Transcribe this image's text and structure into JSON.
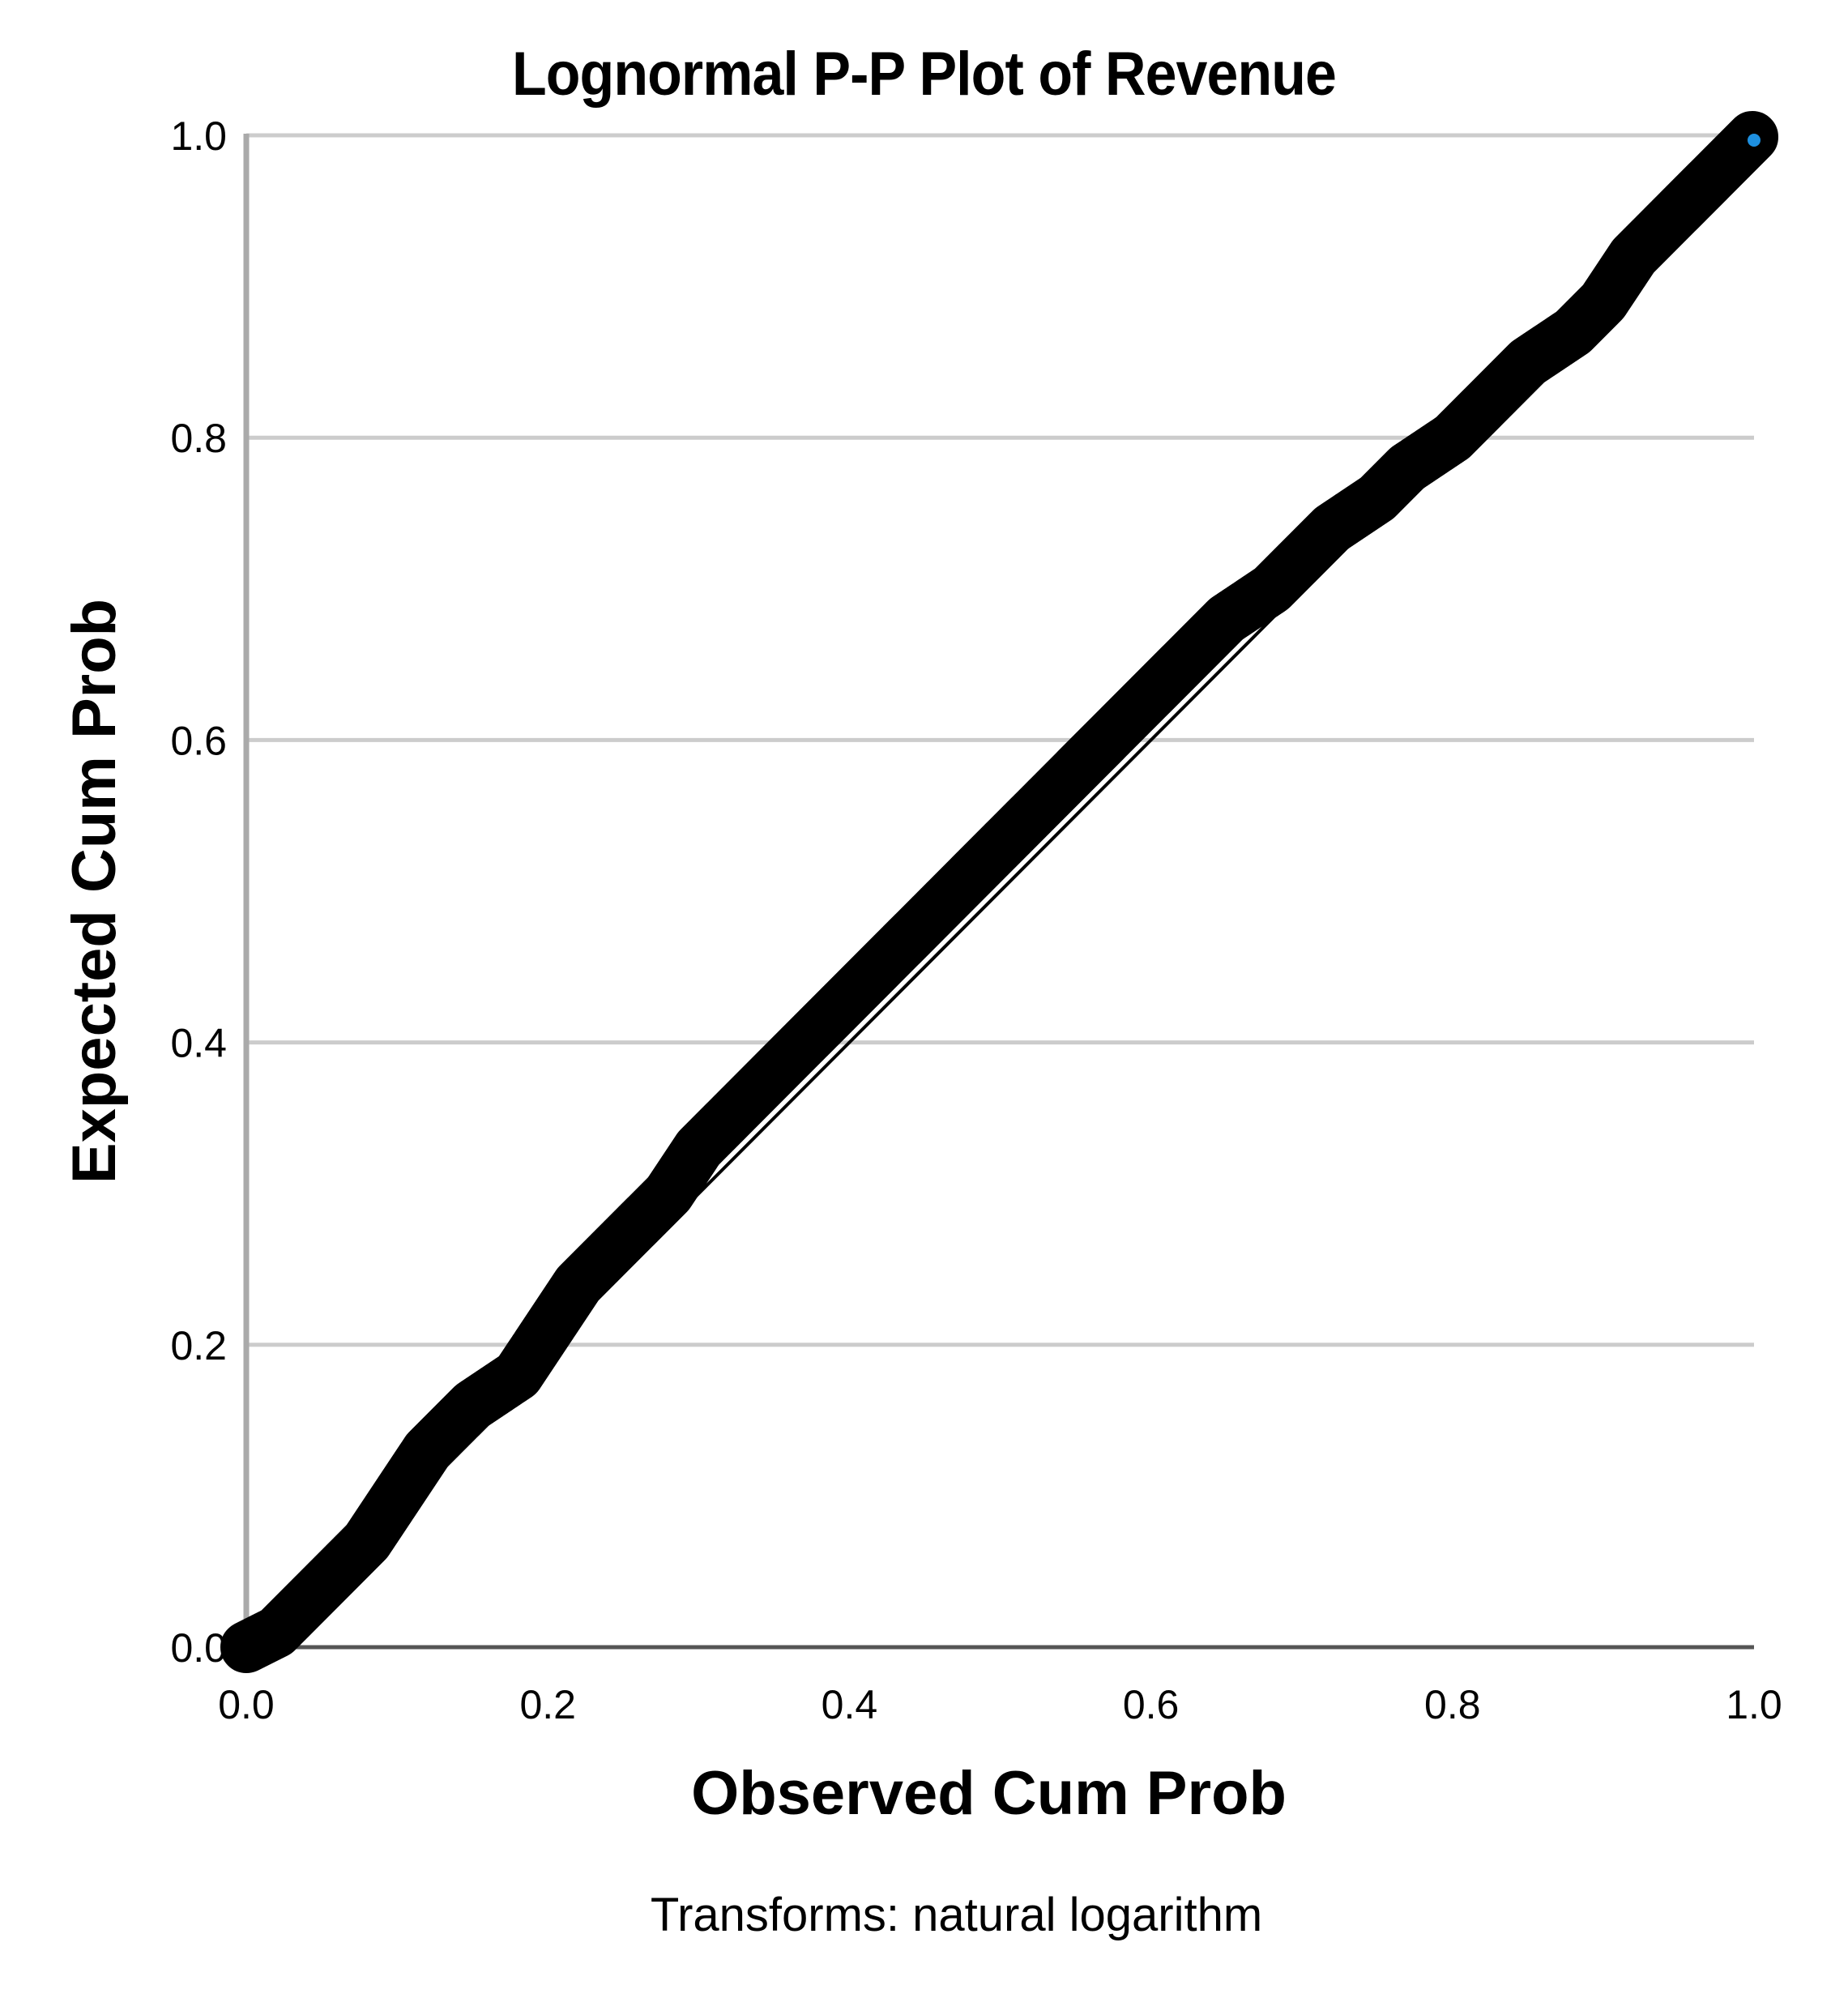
{
  "chart": {
    "title": "Lognormal P-P Plot of Revenue",
    "xlabel": "Observed Cum Prob",
    "ylabel": "Expected Cum Prob",
    "footnote": "Transforms: natural logarithm",
    "colors": {
      "marker": "#000000",
      "reference_line": "#000000",
      "gridline": "#cccccc",
      "axis": "#555555",
      "highlight_marker": "#1e90e0"
    }
  },
  "chart_data": {
    "type": "scatter",
    "title": "Lognormal P-P Plot of Revenue",
    "xlabel": "Observed Cum Prob",
    "ylabel": "Expected Cum Prob",
    "annotation": "Transforms: natural logarithm",
    "xlim": [
      0.0,
      1.0
    ],
    "ylim": [
      0.0,
      1.0
    ],
    "xticks": [
      "0.0",
      "0.2",
      "0.4",
      "0.6",
      "0.8",
      "1.0"
    ],
    "yticks": [
      "0.0",
      "0.2",
      "0.4",
      "0.6",
      "0.8",
      "1.0"
    ],
    "grid": "horizontal",
    "legend": "none",
    "reference_line": {
      "from": [
        0,
        0
      ],
      "to": [
        1,
        1
      ]
    },
    "series": [
      {
        "name": "Revenue",
        "x": [
          0.0,
          0.02,
          0.05,
          0.08,
          0.1,
          0.12,
          0.15,
          0.18,
          0.2,
          0.22,
          0.25,
          0.28,
          0.3,
          0.32,
          0.35,
          0.38,
          0.4,
          0.42,
          0.45,
          0.48,
          0.5,
          0.52,
          0.55,
          0.57,
          0.6,
          0.62,
          0.65,
          0.68,
          0.7,
          0.72,
          0.75,
          0.77,
          0.8,
          0.82,
          0.85,
          0.88,
          0.9,
          0.92,
          0.95,
          0.97,
          1.0
        ],
        "values": [
          0.0,
          0.01,
          0.04,
          0.07,
          0.1,
          0.13,
          0.16,
          0.18,
          0.21,
          0.24,
          0.27,
          0.3,
          0.33,
          0.35,
          0.38,
          0.41,
          0.43,
          0.45,
          0.48,
          0.51,
          0.53,
          0.55,
          0.58,
          0.6,
          0.63,
          0.65,
          0.68,
          0.7,
          0.72,
          0.74,
          0.76,
          0.78,
          0.8,
          0.82,
          0.85,
          0.87,
          0.89,
          0.92,
          0.95,
          0.97,
          1.0
        ]
      }
    ]
  }
}
